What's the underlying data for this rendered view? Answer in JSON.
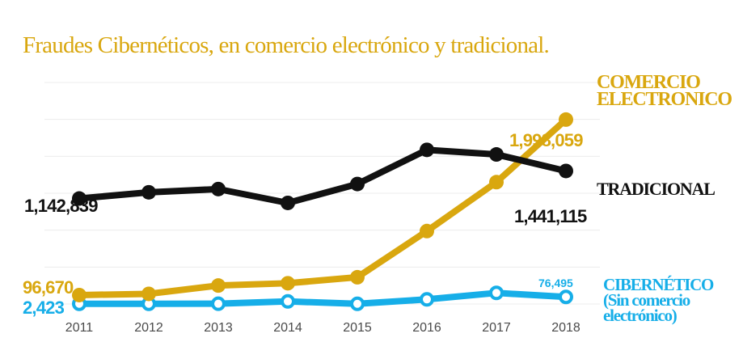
{
  "chart_data": {
    "type": "line",
    "title": "Fraudes Cibernéticos, en comercio electrónico y tradicional.",
    "categories": [
      "2011",
      "2012",
      "2013",
      "2014",
      "2015",
      "2016",
      "2017",
      "2018"
    ],
    "ylim": [
      0,
      2400000
    ],
    "grid": true,
    "series": [
      {
        "name": "TRADICIONAL",
        "color": "#111111",
        "values": [
          1142839,
          1210000,
          1245000,
          1095000,
          1300000,
          1670000,
          1620000,
          1441115
        ],
        "start_label": "1,142,839",
        "end_label": "1,441,115"
      },
      {
        "name": "COMERCIO ELECTRONICO",
        "color": "#d9a70f",
        "values": [
          96670,
          110000,
          200000,
          225000,
          290000,
          790000,
          1320000,
          1998059
        ],
        "start_label": "96,670",
        "end_label": "1,998,059"
      },
      {
        "name": "CIBERNÉTICO (Sin comercio electrónico)",
        "color": "#16aee8",
        "values": [
          2423,
          2600,
          3000,
          28000,
          2000,
          50000,
          120000,
          76495
        ],
        "start_label": "2,423",
        "end_label": "76,495"
      }
    ],
    "legend": {
      "comercio": [
        "COMERCIO",
        "ELECTRONICO"
      ],
      "tradicional": [
        "TRADICIONAL"
      ],
      "cibernetico": [
        "CIBERNÉTICO",
        "(Sin comercio",
        "electrónico)"
      ]
    },
    "title_color": "#d9a70f"
  }
}
